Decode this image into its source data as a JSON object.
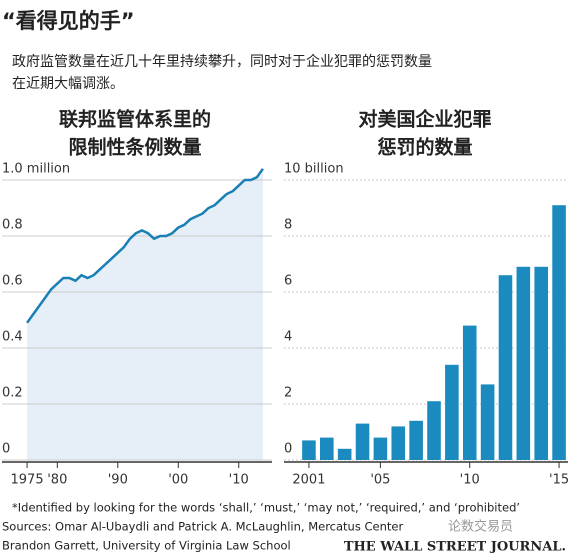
{
  "title": "“看得见的手”",
  "subtitle": [
    "政府监管数量在近几十年里持续攀升，同时对于企业犯罪的惩罚数量",
    "在近期大幅调涨。"
  ],
  "chart_data": [
    {
      "type": "area",
      "title": [
        "联邦监管体系里的",
        "限制性条例数量"
      ],
      "x": [
        1975,
        1976,
        1977,
        1978,
        1979,
        1980,
        1981,
        1982,
        1983,
        1984,
        1985,
        1986,
        1987,
        1988,
        1989,
        1990,
        1991,
        1992,
        1993,
        1994,
        1995,
        1996,
        1997,
        1998,
        1999,
        2000,
        2001,
        2002,
        2003,
        2004,
        2005,
        2006,
        2007,
        2008,
        2009,
        2010,
        2011,
        2012,
        2013,
        2014
      ],
      "values": [
        0.49,
        0.52,
        0.55,
        0.58,
        0.61,
        0.63,
        0.65,
        0.65,
        0.64,
        0.66,
        0.65,
        0.66,
        0.68,
        0.7,
        0.72,
        0.74,
        0.76,
        0.79,
        0.81,
        0.82,
        0.81,
        0.79,
        0.8,
        0.8,
        0.81,
        0.83,
        0.84,
        0.86,
        0.87,
        0.88,
        0.9,
        0.91,
        0.93,
        0.95,
        0.96,
        0.98,
        1.0,
        1.0,
        1.01,
        1.04
      ],
      "color": "#1a7fb5",
      "fill": "#e6eff7",
      "xlim": [
        1973.5,
        2015.5
      ],
      "ylim": [
        0,
        1.05
      ],
      "xticks": [
        {
          "value": 1975,
          "label": "1975"
        },
        {
          "value": 1980,
          "label": "'80"
        },
        {
          "value": 1990,
          "label": "'90"
        },
        {
          "value": 2000,
          "label": "'00"
        },
        {
          "value": 2010,
          "label": "'10"
        }
      ],
      "yticks": [
        0,
        0.2,
        0.4,
        0.6,
        0.8,
        {
          "value": 1.0,
          "label": "1.0 million"
        }
      ],
      "grid": true
    },
    {
      "type": "bar",
      "title": [
        "对美国企业犯罪",
        "惩罚的数量"
      ],
      "x": [
        2001,
        2002,
        2003,
        2004,
        2005,
        2006,
        2007,
        2008,
        2009,
        2010,
        2011,
        2012,
        2013,
        2014,
        2015
      ],
      "values": [
        0.7,
        0.8,
        0.4,
        1.3,
        0.8,
        1.2,
        1.4,
        2.1,
        3.4,
        4.8,
        2.7,
        6.6,
        6.9,
        6.9,
        9.1
      ],
      "color": "#1b8bbf",
      "xlim": [
        2000.5,
        2015.5
      ],
      "ylim": [
        0,
        10.5
      ],
      "xticks": [
        {
          "value": 2001,
          "label": "2001"
        },
        {
          "value": 2005,
          "label": "'05"
        },
        {
          "value": 2010,
          "label": "'10"
        },
        {
          "value": 2015,
          "label": "'15"
        }
      ],
      "yticks": [
        0,
        2,
        4,
        6,
        8,
        {
          "value": 10,
          "label": "10 billion"
        }
      ],
      "grid": true
    }
  ],
  "footnotes": [
    "*Identified by looking for the words ‘shall,’ ‘must,’ ‘may not,’ ‘required,’ and ‘prohibited’",
    "Sources: Omar Al-Ubaydli and Patrick A. McLaughlin, Mercatus Center",
    "Brandon Garrett, University of Virginia Law School"
  ],
  "watermark": "论数交易员",
  "credit": "THE WALL STREET JOURNAL."
}
